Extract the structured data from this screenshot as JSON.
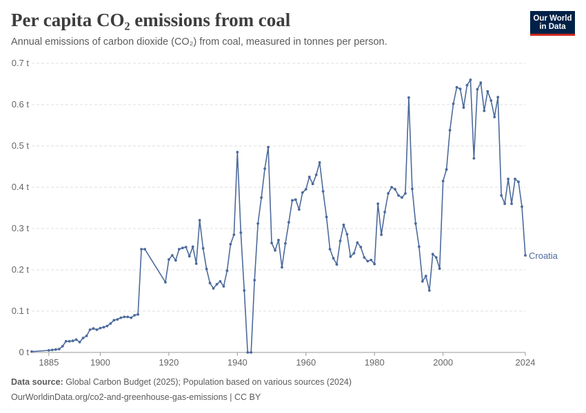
{
  "header": {
    "title": "Per capita CO₂ emissions from coal",
    "subtitle": "Annual emissions of carbon dioxide (CO₂) from coal, measured in tonnes per person."
  },
  "logo": {
    "line1": "Our World",
    "line2": "in Data",
    "bg_color": "#002147",
    "accent_color": "#ce261e"
  },
  "footer": {
    "source_label": "Data source:",
    "source_text": " Global Carbon Budget (2025); Population based on various sources (2024)",
    "url_text": "OurWorldinData.org/co2-and-greenhouse-gas-emissions | CC BY"
  },
  "chart_data": {
    "type": "line",
    "title": "Per capita CO₂ emissions from coal",
    "subtitle": "Annual emissions of carbon dioxide (CO₂) from coal, measured in tonnes per person.",
    "xlabel": "",
    "ylabel": "",
    "ylim": [
      0,
      0.7
    ],
    "xlim": [
      1880,
      2024
    ],
    "yticks": [
      0,
      0.1,
      0.2,
      0.3,
      0.4,
      0.5,
      0.6,
      0.7
    ],
    "ytick_labels": [
      "0 t",
      "0.1 t",
      "0.2 t",
      "0.3 t",
      "0.4 t",
      "0.5 t",
      "0.6 t",
      "0.7 t"
    ],
    "xticks": [
      1885,
      1900,
      1920,
      1940,
      1960,
      1980,
      2000,
      2024
    ],
    "xtick_labels": [
      "1885",
      "1900",
      "1920",
      "1940",
      "1960",
      "1980",
      "2000",
      "2024"
    ],
    "grid": "horizontal dashed",
    "line_color": "#4c6a9c",
    "series": [
      {
        "name": "Croatia",
        "x": [
          1880,
          1885,
          1886,
          1887,
          1888,
          1889,
          1890,
          1891,
          1892,
          1893,
          1894,
          1895,
          1896,
          1897,
          1898,
          1899,
          1900,
          1901,
          1902,
          1903,
          1904,
          1905,
          1906,
          1907,
          1908,
          1909,
          1910,
          1911,
          1912,
          1913,
          1919,
          1920,
          1921,
          1922,
          1923,
          1924,
          1925,
          1926,
          1927,
          1928,
          1929,
          1930,
          1931,
          1932,
          1933,
          1934,
          1935,
          1936,
          1937,
          1938,
          1939,
          1940,
          1941,
          1942,
          1943,
          1944,
          1945,
          1946,
          1947,
          1948,
          1949,
          1950,
          1951,
          1952,
          1953,
          1954,
          1955,
          1956,
          1957,
          1958,
          1959,
          1960,
          1961,
          1962,
          1963,
          1964,
          1965,
          1966,
          1967,
          1968,
          1969,
          1970,
          1971,
          1972,
          1973,
          1974,
          1975,
          1976,
          1977,
          1978,
          1979,
          1980,
          1981,
          1982,
          1983,
          1984,
          1985,
          1986,
          1987,
          1988,
          1989,
          1990,
          1991,
          1992,
          1993,
          1994,
          1995,
          1996,
          1997,
          1998,
          1999,
          2000,
          2001,
          2002,
          2003,
          2004,
          2005,
          2006,
          2007,
          2008,
          2009,
          2010,
          2011,
          2012,
          2013,
          2014,
          2015,
          2016,
          2017,
          2018,
          2019,
          2020,
          2021,
          2022,
          2023,
          2024
        ],
        "y": [
          0.002,
          0.005,
          0.006,
          0.007,
          0.008,
          0.015,
          0.027,
          0.027,
          0.028,
          0.031,
          0.025,
          0.035,
          0.04,
          0.055,
          0.058,
          0.055,
          0.059,
          0.061,
          0.064,
          0.07,
          0.078,
          0.08,
          0.084,
          0.086,
          0.086,
          0.084,
          0.09,
          0.092,
          0.25,
          0.25,
          0.17,
          0.225,
          0.235,
          0.223,
          0.25,
          0.253,
          0.255,
          0.233,
          0.256,
          0.215,
          0.32,
          0.252,
          0.202,
          0.168,
          0.155,
          0.165,
          0.172,
          0.16,
          0.198,
          0.262,
          0.285,
          0.485,
          0.29,
          0.15,
          0.0,
          0.0,
          0.175,
          0.312,
          0.375,
          0.445,
          0.497,
          0.265,
          0.247,
          0.272,
          0.206,
          0.264,
          0.315,
          0.368,
          0.37,
          0.346,
          0.387,
          0.395,
          0.425,
          0.408,
          0.43,
          0.46,
          0.39,
          0.328,
          0.25,
          0.228,
          0.213,
          0.27,
          0.309,
          0.286,
          0.232,
          0.24,
          0.266,
          0.255,
          0.23,
          0.221,
          0.224,
          0.214,
          0.36,
          0.285,
          0.34,
          0.385,
          0.4,
          0.395,
          0.38,
          0.375,
          0.385,
          0.617,
          0.396,
          0.312,
          0.256,
          0.172,
          0.185,
          0.15,
          0.238,
          0.23,
          0.203,
          0.415,
          0.443,
          0.538,
          0.602,
          0.642,
          0.638,
          0.593,
          0.647,
          0.66,
          0.47,
          0.637,
          0.653,
          0.585,
          0.632,
          0.61,
          0.57,
          0.618,
          0.38,
          0.36,
          0.42,
          0.36,
          0.42,
          0.413,
          0.353,
          0.235
        ]
      }
    ]
  }
}
